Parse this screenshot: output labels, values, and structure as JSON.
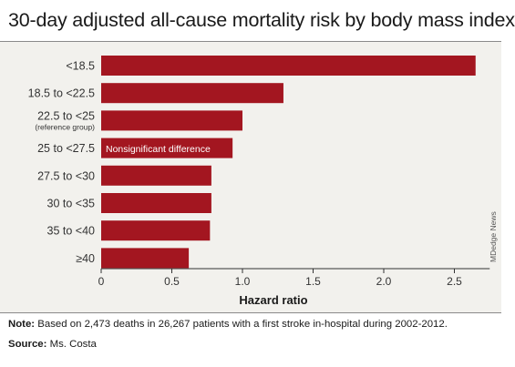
{
  "title": "30-day adjusted all-cause mortality risk by body mass index",
  "note": {
    "label": "Note:",
    "text": " Based on 2,473 deaths in 26,267 patients with a first stroke in-hospital during 2002-2012."
  },
  "source": {
    "label": "Source:",
    "text": " Ms. Costa"
  },
  "credit": "MDedge News",
  "colors": {
    "bar": "#a31620",
    "background": "#f2f1ed",
    "bar_text": "#ffffff",
    "axis": "#333333"
  },
  "chart_data": {
    "type": "bar",
    "orientation": "horizontal",
    "categories": [
      "<18.5",
      "18.5 to <22.5",
      "22.5 to <25",
      "25 to <27.5",
      "27.5 to <30",
      "30 to <35",
      "35 to <40",
      "≥40"
    ],
    "category_sublabels": [
      "",
      "",
      "(reference group)",
      "",
      "",
      "",
      "",
      ""
    ],
    "values": [
      2.65,
      1.29,
      1.0,
      0.93,
      0.78,
      0.78,
      0.77,
      0.62
    ],
    "bar_annotations": [
      "",
      "",
      "",
      "Nonsignificant difference",
      "",
      "",
      "",
      ""
    ],
    "xlabel": "Hazard ratio",
    "ylabel": "",
    "xlim": [
      0,
      2.75
    ],
    "xticks": [
      0,
      0.5,
      1.0,
      1.5,
      2.0,
      2.5
    ],
    "xtick_labels": [
      "0",
      "0.5",
      "1.0",
      "1.5",
      "2.0",
      "2.5"
    ],
    "grid": false,
    "legend": "none"
  }
}
